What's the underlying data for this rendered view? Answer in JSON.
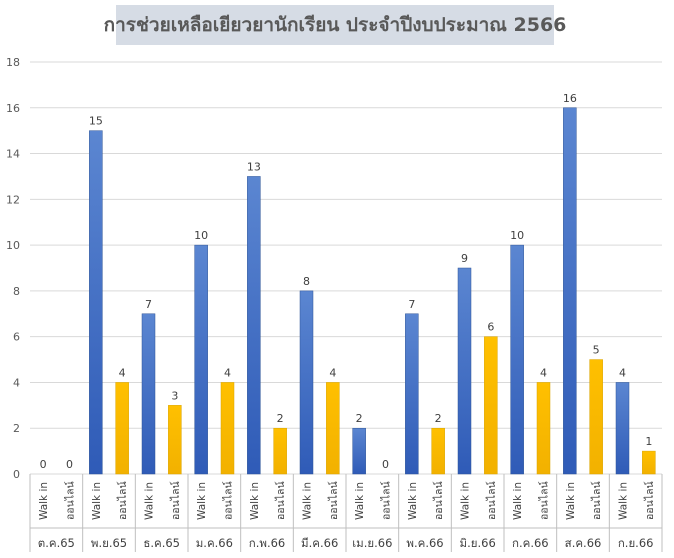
{
  "chart_data": {
    "type": "bar",
    "title": "การช่วยเหลือเยียวยานักเรียน ประจำปีงบประมาณ 2566",
    "xlabel": "",
    "ylabel": "",
    "ylim": [
      0,
      18
    ],
    "yticks": [
      0,
      2,
      4,
      6,
      8,
      10,
      12,
      14,
      16,
      18
    ],
    "grid": true,
    "legend": "none",
    "subcategories": [
      "Walk in",
      "ออนไลน์"
    ],
    "colors": {
      "Walk in": "#4472c4",
      "ออนไลน์": "#ffc000"
    },
    "groups": [
      {
        "label": "ต.ค.65",
        "values": [
          0,
          0
        ]
      },
      {
        "label": "พ.ย.65",
        "values": [
          15,
          4
        ]
      },
      {
        "label": "ธ.ค.65",
        "values": [
          7,
          3
        ]
      },
      {
        "label": "ม.ค.66",
        "values": [
          10,
          4
        ]
      },
      {
        "label": "ก.พ.66",
        "values": [
          13,
          2
        ]
      },
      {
        "label": "มี.ค.66",
        "values": [
          8,
          4
        ]
      },
      {
        "label": "เม.ย.66",
        "values": [
          2,
          0
        ]
      },
      {
        "label": "พ.ค.66",
        "values": [
          7,
          2
        ]
      },
      {
        "label": "มิ.ย.66",
        "values": [
          9,
          6
        ]
      },
      {
        "label": "ก.ค.66",
        "values": [
          10,
          4
        ]
      },
      {
        "label": "ส.ค.66",
        "values": [
          16,
          5
        ]
      },
      {
        "label": "ก.ย.66",
        "values": [
          4,
          1
        ]
      }
    ]
  }
}
